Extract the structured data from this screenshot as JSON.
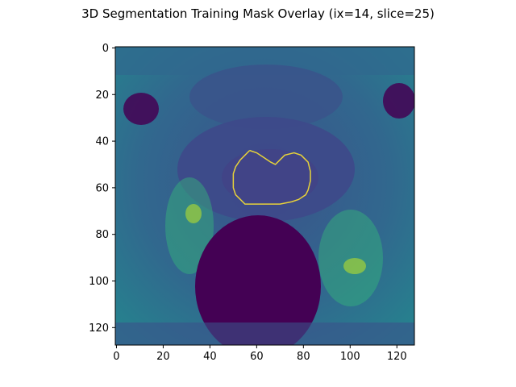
{
  "figure": {
    "title": "3D Segmentation Training Mask Overlay (ix=14, slice=25)"
  },
  "axes": {
    "x_ticks": [
      "0",
      "20",
      "40",
      "60",
      "80",
      "100",
      "120"
    ],
    "y_ticks": [
      "0",
      "20",
      "40",
      "60",
      "80",
      "100",
      "120"
    ],
    "x_range": [
      -0.5,
      127.5
    ],
    "y_range": [
      -0.5,
      127.5
    ],
    "y_inverted": true
  },
  "image": {
    "description_colormap": "viridis",
    "size": [
      128,
      128
    ]
  },
  "overlay": {
    "color": "#e6d23a",
    "contour": [
      [
        57,
        44
      ],
      [
        60,
        45
      ],
      [
        63,
        47
      ],
      [
        66,
        49
      ],
      [
        68,
        50
      ],
      [
        70,
        48
      ],
      [
        72,
        46
      ],
      [
        76,
        45
      ],
      [
        79,
        46
      ],
      [
        82,
        49
      ],
      [
        83,
        53
      ],
      [
        83,
        57
      ],
      [
        82,
        61
      ],
      [
        81,
        63
      ],
      [
        78,
        65
      ],
      [
        75,
        66
      ],
      [
        70,
        67
      ],
      [
        61,
        67
      ],
      [
        55,
        67
      ],
      [
        53,
        65
      ],
      [
        51,
        63
      ],
      [
        50,
        60
      ],
      [
        50,
        54
      ],
      [
        51,
        51
      ],
      [
        53,
        48
      ],
      [
        55,
        46
      ],
      [
        57,
        44
      ]
    ]
  }
}
